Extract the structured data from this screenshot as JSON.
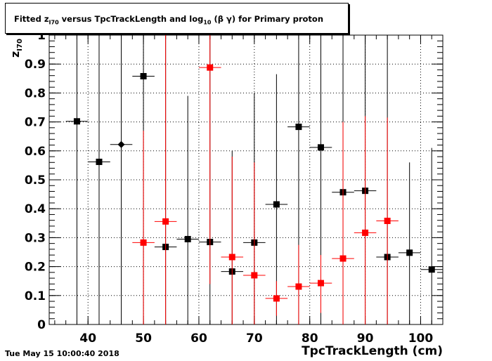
{
  "title": {
    "prefix": "Fitted  z",
    "sub1": "I70",
    "middle": "  versus TpcTrackLength and log",
    "sub2": "10",
    "suffix": " (β γ) for Primary proton"
  },
  "ylabel": {
    "main": "z",
    "sub": "I70"
  },
  "timestamp": "Tue May 15 10:00:40 2018",
  "chart_data": {
    "type": "scatter",
    "xlabel": "TpcTrackLength (cm)",
    "ylabel": "z I70",
    "xlim": [
      33,
      104
    ],
    "ylim": [
      0,
      1
    ],
    "grid": true,
    "xticks": [
      40,
      50,
      60,
      70,
      80,
      90,
      100
    ],
    "yticks": [
      0,
      0.1,
      0.2,
      0.3,
      0.4,
      0.5,
      0.6,
      0.7,
      0.8,
      0.9,
      1
    ],
    "ytick_labels": [
      "0",
      "0.1",
      "0.2",
      "0.3",
      "0.4",
      "0.5",
      "0.6",
      "0.7",
      "0.8",
      "0.9",
      "1"
    ],
    "series": [
      {
        "color": "#000000",
        "marker": "square",
        "xerr": 2,
        "points": [
          {
            "x": 38,
            "y": 0.702,
            "ylo": 0.0,
            "yhi": 1.0
          },
          {
            "x": 42,
            "y": 0.562,
            "ylo": 0.0,
            "yhi": 1.0
          },
          {
            "x": 46,
            "y": 0.622,
            "ylo": 0.0,
            "yhi": 1.0,
            "marker": "diamond"
          },
          {
            "x": 50,
            "y": 0.858,
            "ylo": 0.0,
            "yhi": 1.0
          },
          {
            "x": 54,
            "y": 0.268,
            "ylo": 0.0,
            "yhi": 1.0
          },
          {
            "x": 58,
            "y": 0.295,
            "ylo": 0.0,
            "yhi": 0.79
          },
          {
            "x": 62,
            "y": 0.285,
            "ylo": 0.0,
            "yhi": 1.0
          },
          {
            "x": 66,
            "y": 0.183,
            "ylo": 0.0,
            "yhi": 0.6
          },
          {
            "x": 70,
            "y": 0.283,
            "ylo": 0.0,
            "yhi": 0.8
          },
          {
            "x": 74,
            "y": 0.415,
            "ylo": 0.0,
            "yhi": 0.865
          },
          {
            "x": 78,
            "y": 0.683,
            "ylo": 0.0,
            "yhi": 1.0
          },
          {
            "x": 82,
            "y": 0.612,
            "ylo": 0.0,
            "yhi": 1.0
          },
          {
            "x": 86,
            "y": 0.457,
            "ylo": 0.0,
            "yhi": 1.0
          },
          {
            "x": 90,
            "y": 0.462,
            "ylo": 0.0,
            "yhi": 1.0
          },
          {
            "x": 94,
            "y": 0.233,
            "ylo": 0.0,
            "yhi": 1.0
          },
          {
            "x": 98,
            "y": 0.248,
            "ylo": 0.0,
            "yhi": 0.56
          },
          {
            "x": 102,
            "y": 0.19,
            "ylo": 0.0,
            "yhi": 0.61
          }
        ]
      },
      {
        "color": "#ff0000",
        "marker": "square",
        "xerr": 2,
        "points": [
          {
            "x": 50,
            "y": 0.283,
            "ylo": 0.0,
            "yhi": 0.67
          },
          {
            "x": 54,
            "y": 0.356,
            "ylo": 0.0,
            "yhi": 1.0
          },
          {
            "x": 62,
            "y": 0.888,
            "ylo": 0.14,
            "yhi": 1.0
          },
          {
            "x": 66,
            "y": 0.233,
            "ylo": 0.0,
            "yhi": 0.58
          },
          {
            "x": 70,
            "y": 0.17,
            "ylo": 0.0,
            "yhi": 0.56
          },
          {
            "x": 74,
            "y": 0.09,
            "ylo": 0.03,
            "yhi": 0.15
          },
          {
            "x": 78,
            "y": 0.131,
            "ylo": 0.0,
            "yhi": 0.275
          },
          {
            "x": 82,
            "y": 0.143,
            "ylo": 0.04,
            "yhi": 0.24
          },
          {
            "x": 86,
            "y": 0.228,
            "ylo": 0.0,
            "yhi": 0.7
          },
          {
            "x": 90,
            "y": 0.317,
            "ylo": 0.0,
            "yhi": 0.72
          },
          {
            "x": 94,
            "y": 0.358,
            "ylo": 0.0,
            "yhi": 0.715
          }
        ]
      }
    ]
  }
}
